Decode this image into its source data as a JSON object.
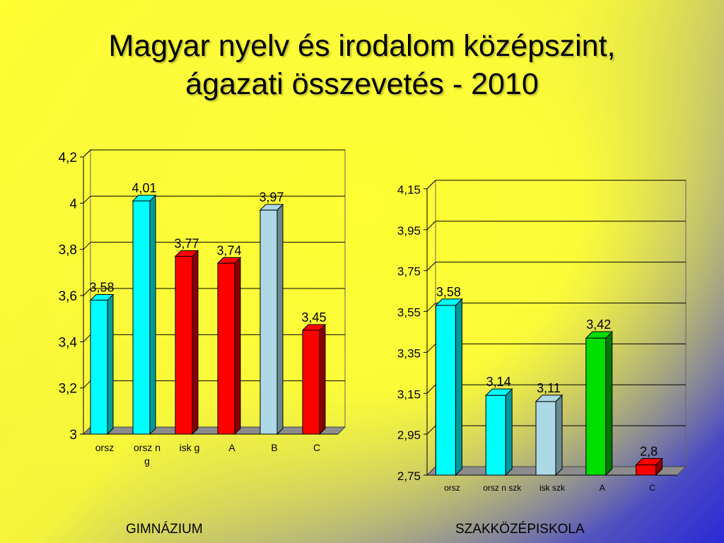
{
  "title": {
    "line1": "Magyar nyelv és irodalom középszint,",
    "line2": "ágazati összevetés - 2010"
  },
  "chart_data": [
    {
      "type": "bar",
      "group_label": "GIMNÁZIUM",
      "categories": [
        "orsz",
        "orsz n g",
        "isk g",
        "A",
        "B",
        "C"
      ],
      "category_lines": [
        [
          "orsz"
        ],
        [
          "orsz n",
          "g"
        ],
        [
          "isk g"
        ],
        [
          "A"
        ],
        [
          "B"
        ],
        [
          "C"
        ]
      ],
      "values": [
        3.58,
        4.01,
        3.77,
        3.74,
        3.97,
        3.45
      ],
      "value_labels": [
        "3,58",
        "4,01",
        "3,77",
        "3,74",
        "3,97",
        "3,45"
      ],
      "colors": [
        "#00ffff",
        "#00ffff",
        "#ff0000",
        "#ff0000",
        "#add8e6",
        "#ff0000"
      ],
      "side_colors": [
        "#009a9a",
        "#009a9a",
        "#8a0000",
        "#8a0000",
        "#6a8a90",
        "#8a0000"
      ],
      "ylim": [
        3,
        4.2
      ],
      "yticks": [
        3,
        3.2,
        3.4,
        3.6,
        3.8,
        4,
        4.2
      ],
      "ytick_labels": [
        "3",
        "3,2",
        "3,4",
        "3,6",
        "3,8",
        "4",
        "4,2"
      ],
      "grid": true,
      "style": "3d-bar"
    },
    {
      "type": "bar",
      "group_label": "SZAKKÖZÉPISKOLA",
      "categories": [
        "orsz",
        "orsz n szk",
        "isk szk",
        "A",
        "C"
      ],
      "category_lines": [
        [
          "orsz"
        ],
        [
          "orsz n szk"
        ],
        [
          "isk szk"
        ],
        [
          "A"
        ],
        [
          "C"
        ]
      ],
      "values": [
        3.58,
        3.14,
        3.11,
        3.42,
        2.8
      ],
      "value_labels": [
        "3,58",
        "3,14",
        "3,11",
        "3,42",
        "2,8"
      ],
      "colors": [
        "#00ffff",
        "#00ffff",
        "#add8e6",
        "#00dd00",
        "#ff0000"
      ],
      "side_colors": [
        "#009a9a",
        "#009a9a",
        "#6a8a90",
        "#007a00",
        "#8a0000"
      ],
      "ylim": [
        2.75,
        4.15
      ],
      "yticks": [
        2.75,
        2.95,
        3.15,
        3.35,
        3.55,
        3.75,
        3.95,
        4.15
      ],
      "ytick_labels": [
        "2,75",
        "2,95",
        "3,15",
        "3,35",
        "3,55",
        "3,75",
        "3,95",
        "4,15"
      ],
      "grid": true,
      "style": "3d-bar"
    }
  ]
}
